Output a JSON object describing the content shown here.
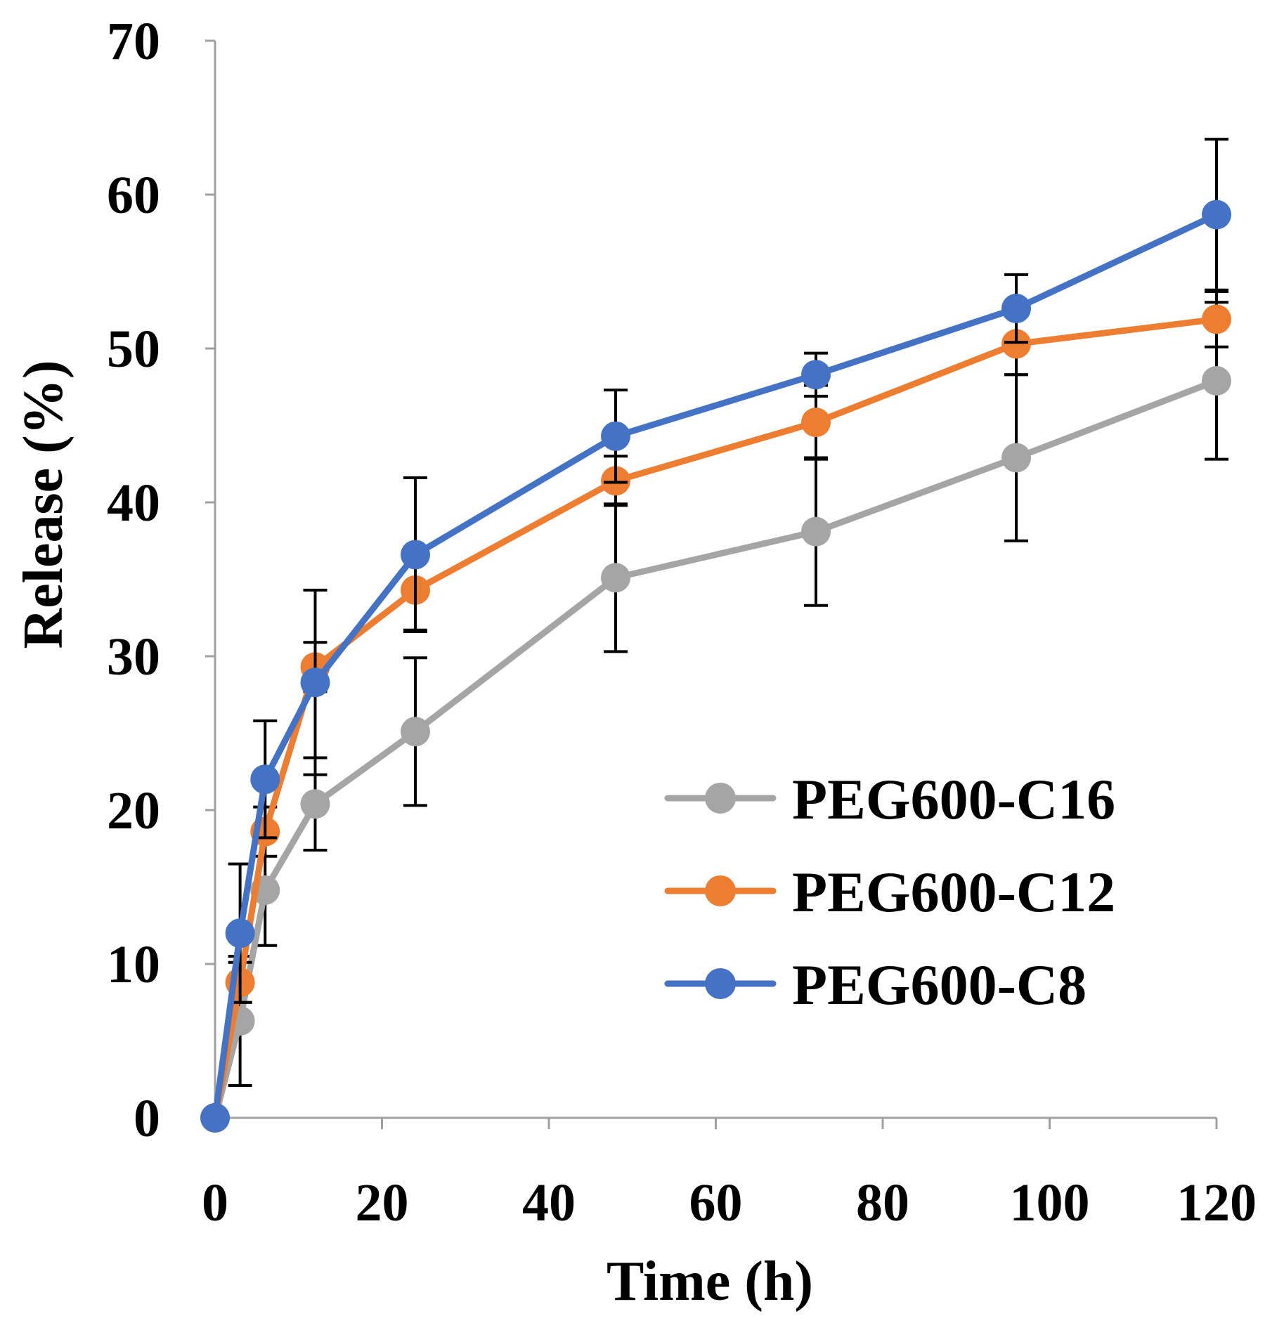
{
  "chart_data": {
    "type": "line",
    "title": "",
    "xlabel": "Time (h)",
    "ylabel": "Release (%)",
    "xlim": [
      0,
      120
    ],
    "ylim": [
      0,
      70
    ],
    "xticks": [
      0,
      20,
      40,
      60,
      80,
      100,
      120
    ],
    "yticks": [
      0,
      10,
      20,
      30,
      40,
      50,
      60,
      70
    ],
    "grid": false,
    "legend_position": "bottom-right",
    "x": [
      0,
      3,
      6,
      12,
      24,
      48,
      72,
      96,
      120
    ],
    "series": [
      {
        "name": "PEG600-C16",
        "color": "#a5a5a5",
        "values": [
          0,
          6.3,
          14.8,
          20.4,
          25.1,
          35.1,
          38.1,
          42.9,
          47.9
        ],
        "errors": [
          0,
          4.2,
          3.6,
          3.0,
          4.8,
          4.8,
          4.8,
          5.4,
          5.1
        ]
      },
      {
        "name": "PEG600-C12",
        "color": "#ed7d31",
        "values": [
          0,
          8.8,
          18.6,
          29.3,
          34.3,
          41.4,
          45.2,
          50.3,
          51.9
        ],
        "errors": [
          0,
          1.3,
          1.6,
          1.6,
          2.6,
          1.6,
          2.4,
          2.0,
          1.8
        ]
      },
      {
        "name": "PEG600-C8",
        "color": "#4472c4",
        "values": [
          0,
          12.0,
          22.0,
          28.3,
          36.6,
          44.3,
          48.3,
          52.6,
          58.7
        ],
        "errors": [
          0,
          4.5,
          3.8,
          6.0,
          5.0,
          3.0,
          1.4,
          2.2,
          4.9
        ]
      }
    ]
  }
}
